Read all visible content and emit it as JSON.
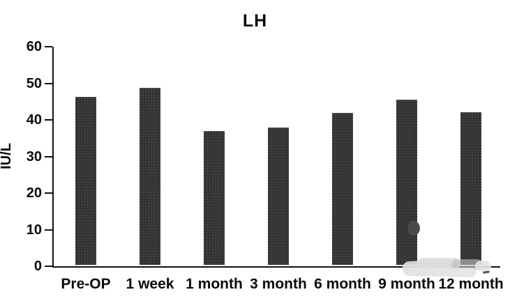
{
  "chart": {
    "title": "LH",
    "ylabel": "IU/L"
  },
  "chart_data": {
    "type": "bar",
    "title": "LH",
    "xlabel": "",
    "ylabel": "IU/L",
    "categories": [
      "Pre-OP",
      "1 week",
      "1 month",
      "3 month",
      "6 month",
      "9 month",
      "12 month"
    ],
    "values": [
      45.8,
      48.2,
      36.4,
      37.3,
      41.4,
      45.0,
      41.5
    ],
    "ylim": [
      0,
      60
    ],
    "yticks": [
      0,
      10,
      20,
      30,
      40,
      50,
      60
    ],
    "grid": false,
    "legend": "none",
    "bar_color": "#252525",
    "axis_color": "#111111",
    "text_color": "#0a0a0a"
  },
  "artifacts": {
    "blob_color": "#4a4a4a",
    "smudge_color": "#dcdcdc"
  }
}
